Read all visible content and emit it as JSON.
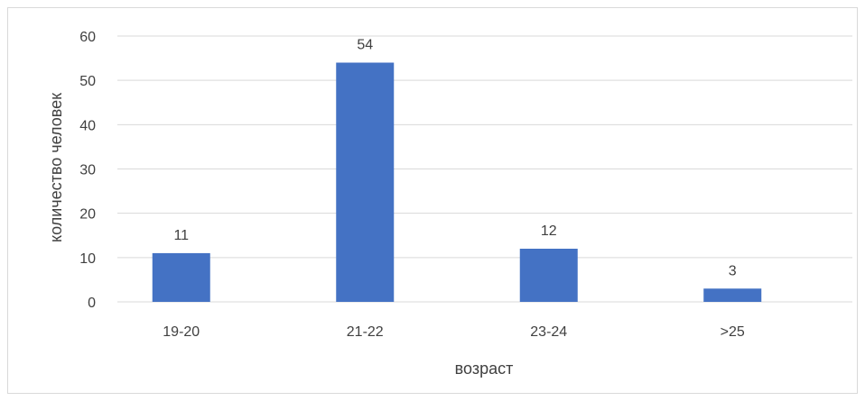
{
  "chart_data": {
    "type": "bar",
    "title": "",
    "xlabel": "возраст",
    "ylabel": "количество человек",
    "categories": [
      "19-20",
      "21-22",
      "23-24",
      ">25"
    ],
    "values": [
      11,
      54,
      12,
      3
    ],
    "ylim": [
      0,
      60
    ],
    "yticks": [
      0,
      10,
      20,
      30,
      40,
      50,
      60
    ],
    "grid": true,
    "legend": "none",
    "data_labels": true,
    "bar_color": "#4472c4"
  }
}
